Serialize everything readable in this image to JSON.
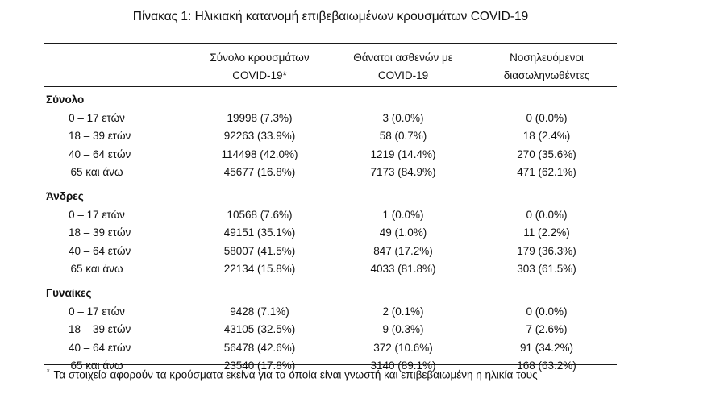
{
  "title": "Πίνακας 1: Ηλικιακή κατανομή επιβεβαιωμένων κρουσμάτων COVID-19",
  "headers": {
    "col1": [
      "Σύνολο κρουσμάτων",
      "COVID-19*"
    ],
    "col2": [
      "Θάνατοι ασθενών με",
      "COVID-19"
    ],
    "col3": [
      "Νοσηλευόμενοι",
      "διασωληνωθέντες"
    ]
  },
  "groups": [
    {
      "name": "Σύνολο",
      "rows": [
        {
          "age": "0 – 17 ετών",
          "cases": "19998 (7.3%)",
          "deaths": "3 (0.0%)",
          "intubated": "0 (0.0%)"
        },
        {
          "age": "18 – 39 ετών",
          "cases": "92263 (33.9%)",
          "deaths": "58 (0.7%)",
          "intubated": "18 (2.4%)"
        },
        {
          "age": "40 – 64 ετών",
          "cases": "114498 (42.0%)",
          "deaths": "1219 (14.4%)",
          "intubated": "270 (35.6%)"
        },
        {
          "age": "65 και άνω",
          "cases": "45677 (16.8%)",
          "deaths": "7173 (84.9%)",
          "intubated": "471 (62.1%)"
        }
      ]
    },
    {
      "name": "Άνδρες",
      "rows": [
        {
          "age": "0 – 17 ετών",
          "cases": "10568 (7.6%)",
          "deaths": "1 (0.0%)",
          "intubated": "0 (0.0%)"
        },
        {
          "age": "18 – 39 ετών",
          "cases": "49151 (35.1%)",
          "deaths": "49 (1.0%)",
          "intubated": "11 (2.2%)"
        },
        {
          "age": "40 – 64 ετών",
          "cases": "58007 (41.5%)",
          "deaths": "847 (17.2%)",
          "intubated": "179 (36.3%)"
        },
        {
          "age": "65 και άνω",
          "cases": "22134 (15.8%)",
          "deaths": "4033 (81.8%)",
          "intubated": "303 (61.5%)"
        }
      ]
    },
    {
      "name": "Γυναίκες",
      "rows": [
        {
          "age": "0 – 17 ετών",
          "cases": "9428 (7.1%)",
          "deaths": "2 (0.1%)",
          "intubated": "0 (0.0%)"
        },
        {
          "age": "18 – 39 ετών",
          "cases": "43105 (32.5%)",
          "deaths": "9 (0.3%)",
          "intubated": "7 (2.6%)"
        },
        {
          "age": "40 – 64 ετών",
          "cases": "56478 (42.6%)",
          "deaths": "372 (10.6%)",
          "intubated": "91 (34.2%)"
        },
        {
          "age": "65 και άνω",
          "cases": "23540 (17.8%)",
          "deaths": "3140 (89.1%)",
          "intubated": "168 (63.2%)"
        }
      ]
    }
  ],
  "footnote": {
    "mark": "*",
    "text": "Τα στοιχεία αφορούν τα κρούσματα εκείνα για τα οποία είναι γνωστή και επιβεβαιωμένη η ηλικία τους"
  }
}
